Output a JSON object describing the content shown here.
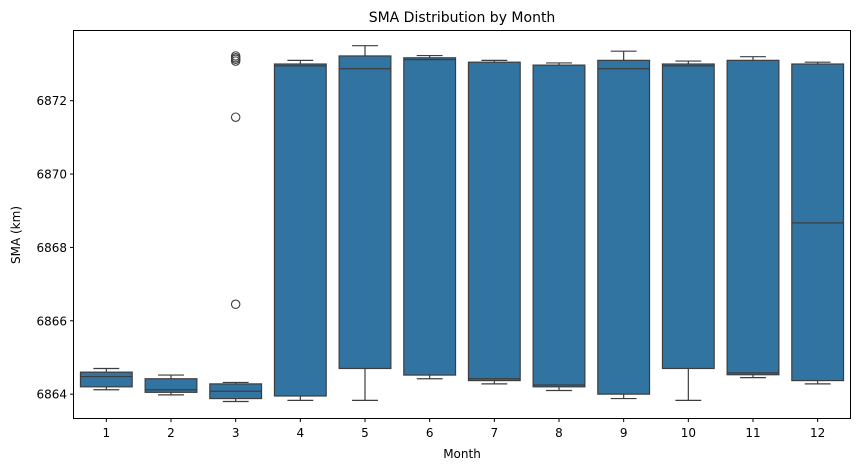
{
  "chart_data": {
    "type": "boxplot",
    "title": "SMA Distribution by Month",
    "xlabel": "Month",
    "ylabel": "SMA (km)",
    "categories": [
      "1",
      "2",
      "3",
      "4",
      "5",
      "6",
      "7",
      "8",
      "9",
      "10",
      "11",
      "12"
    ],
    "yticks": [
      6864,
      6866,
      6868,
      6870,
      6872
    ],
    "ylim": [
      6863.35,
      6873.9
    ],
    "grid": false,
    "box_color": "#3274a1",
    "edge_color": "#3d3d3d",
    "boxes": [
      {
        "month": "1",
        "whisker_low": 6864.12,
        "q1": 6864.2,
        "median": 6864.48,
        "q3": 6864.6,
        "whisker_high": 6864.7,
        "outliers": []
      },
      {
        "month": "2",
        "whisker_low": 6863.98,
        "q1": 6864.05,
        "median": 6864.12,
        "q3": 6864.42,
        "whisker_high": 6864.52,
        "outliers": []
      },
      {
        "month": "3",
        "whisker_low": 6863.8,
        "q1": 6863.88,
        "median": 6864.08,
        "q3": 6864.28,
        "whisker_high": 6864.32,
        "outliers": [
          6866.45,
          6871.55,
          6873.08,
          6873.13,
          6873.17,
          6873.22
        ]
      },
      {
        "month": "4",
        "whisker_low": 6863.83,
        "q1": 6863.95,
        "median": 6872.95,
        "q3": 6873.0,
        "whisker_high": 6873.1,
        "outliers": []
      },
      {
        "month": "5",
        "whisker_low": 6863.83,
        "q1": 6864.7,
        "median": 6872.87,
        "q3": 6873.22,
        "whisker_high": 6873.5,
        "outliers": []
      },
      {
        "month": "6",
        "whisker_low": 6864.42,
        "q1": 6864.52,
        "median": 6873.12,
        "q3": 6873.17,
        "whisker_high": 6873.23,
        "outliers": []
      },
      {
        "month": "7",
        "whisker_low": 6864.28,
        "q1": 6864.37,
        "median": 6864.42,
        "q3": 6873.05,
        "whisker_high": 6873.1,
        "outliers": []
      },
      {
        "month": "8",
        "whisker_low": 6864.1,
        "q1": 6864.2,
        "median": 6864.25,
        "q3": 6872.97,
        "whisker_high": 6873.03,
        "outliers": []
      },
      {
        "month": "9",
        "whisker_low": 6863.88,
        "q1": 6864.0,
        "median": 6872.87,
        "q3": 6873.1,
        "whisker_high": 6873.35,
        "outliers": []
      },
      {
        "month": "10",
        "whisker_low": 6863.83,
        "q1": 6864.7,
        "median": 6872.95,
        "q3": 6873.0,
        "whisker_high": 6873.08,
        "outliers": []
      },
      {
        "month": "11",
        "whisker_low": 6864.45,
        "q1": 6864.53,
        "median": 6864.58,
        "q3": 6873.1,
        "whisker_high": 6873.2,
        "outliers": []
      },
      {
        "month": "12",
        "whisker_low": 6864.28,
        "q1": 6864.37,
        "median": 6868.67,
        "q3": 6873.0,
        "whisker_high": 6873.05,
        "outliers": []
      }
    ]
  }
}
